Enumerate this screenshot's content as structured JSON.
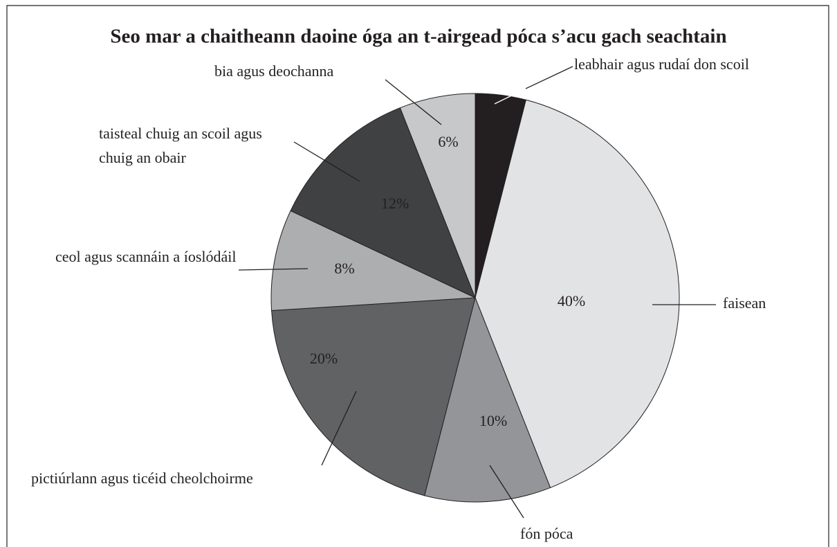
{
  "chart_data": {
    "type": "pie",
    "title": "Seo mar a chaitheann daoine óga an t-airgead póca s’acu gach seachtain",
    "categories": [
      "leabhair agus rudaí don scoil",
      "faisean",
      "fón póca",
      "pictiúrlann agus ticéid cheolchoirme",
      "ceol agus scannáin a íoslódáil",
      "taisteal chuig an scoil agus chuig an obair",
      "bia agus deochanna"
    ],
    "values": [
      4,
      40,
      10,
      20,
      8,
      12,
      6
    ],
    "value_labels": [
      "4%",
      "40%",
      "10%",
      "20%",
      "8%",
      "12%",
      "6%"
    ],
    "colors": [
      "#231f20",
      "#e2e3e5",
      "#939598",
      "#616264",
      "#adaeb0",
      "#404143",
      "#c7c8ca"
    ]
  }
}
